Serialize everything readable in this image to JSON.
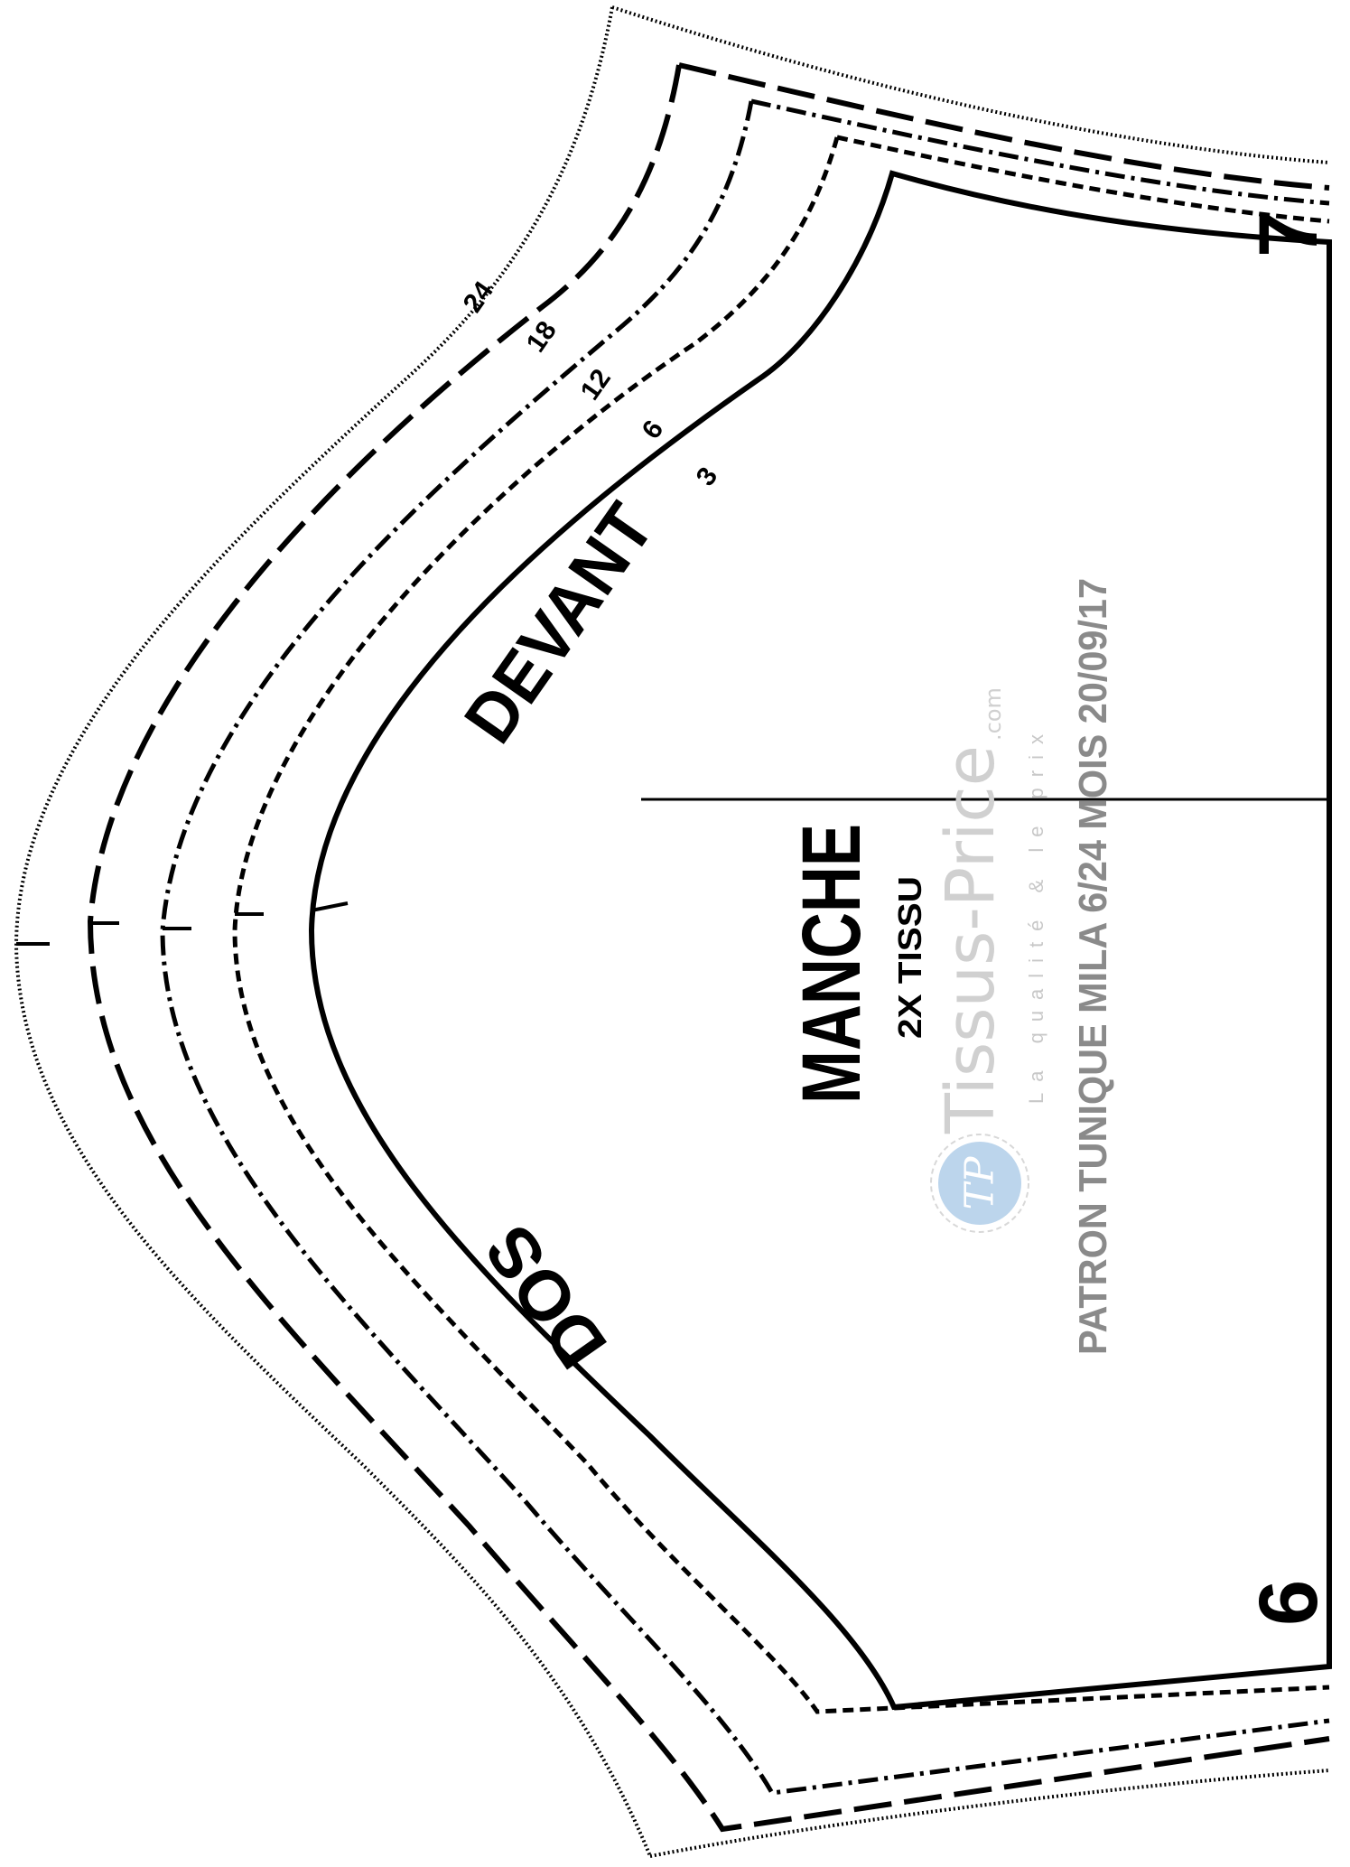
{
  "piece": {
    "name": "MANCHE",
    "cut": "2X TISSU",
    "front_label": "DEVANT",
    "back_label": "DOS",
    "notch_top": "7",
    "notch_bottom": "6"
  },
  "sizes": [
    {
      "label": "24",
      "line_style": "dotted"
    },
    {
      "label": "18",
      "line_style": "long-dash"
    },
    {
      "label": "12",
      "line_style": "dash-dot"
    },
    {
      "label": "6",
      "line_style": "short-dash"
    },
    {
      "label": "3",
      "line_style": "solid"
    }
  ],
  "watermark": {
    "brand": "Tissus-Price",
    "brand_suffix": ".com",
    "tagline": "La qualité & le prix",
    "logo_letters": "TP"
  },
  "pattern_info": "PATRON TUNIQUE MILA 6/24 MOIS 20/09/17",
  "colors": {
    "line": "#000000",
    "watermark_text": "#c8c8c8",
    "logo_fill": "#bcd5ec"
  }
}
